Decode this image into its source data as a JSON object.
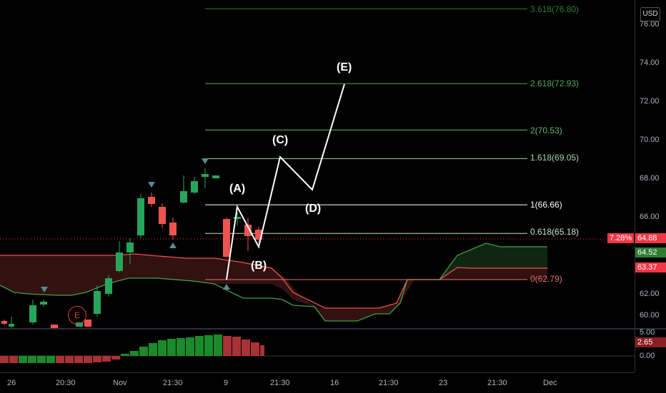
{
  "currency": "USD",
  "price_axis": {
    "ticks": [
      "76.00",
      "74.00",
      "72.00",
      "70.00",
      "68.00",
      "66.00",
      "62.00",
      "60.00"
    ]
  },
  "osc_axis": {
    "ticks": [
      "5.00",
      "0.00"
    ]
  },
  "badges": {
    "pct": "7.28%",
    "last": "64.88",
    "cloud_top": "64.52",
    "cloud_bottom": "63.37",
    "osc": "2.65"
  },
  "time_axis": {
    "ticks": [
      "26",
      "20:30",
      "Nov",
      "21:30",
      "9",
      "21:30",
      "16",
      "21:30",
      "23",
      "21:30",
      "Dec"
    ]
  },
  "fib_levels": [
    {
      "label": "3.618(76.80)",
      "value": 76.8,
      "color": "#2e7d32"
    },
    {
      "label": "2.618(72.93)",
      "value": 72.93,
      "color": "#4caf50"
    },
    {
      "label": "2(70.53)",
      "value": 70.53,
      "color": "#66bb6a"
    },
    {
      "label": "1.618(69.05)",
      "value": 69.05,
      "color": "#a5d6a7"
    },
    {
      "label": "1(66.66)",
      "value": 66.66,
      "color": "#ffffff"
    },
    {
      "label": "0.618(65.18)",
      "value": 65.18,
      "color": "#c8e6c9"
    },
    {
      "label": "0(62.79)",
      "value": 62.79,
      "color": "#e57373"
    }
  ],
  "waves": [
    "(A)",
    "(B)",
    "(C)",
    "(D)",
    "(E)"
  ],
  "earnings_marker": "E",
  "colors": {
    "up": "#26a65b",
    "down": "#ef5350",
    "badge_red": "#f23645",
    "badge_green": "#089981",
    "badge_darkred": "#b22833"
  }
}
